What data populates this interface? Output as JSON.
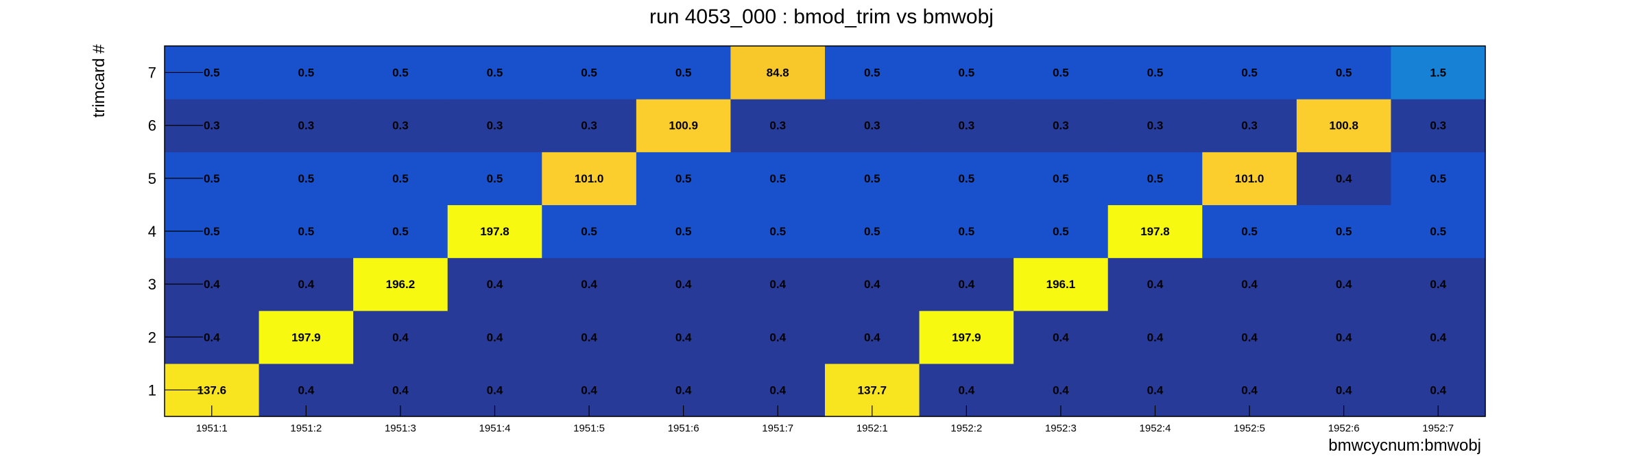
{
  "chart_data": {
    "type": "heatmap",
    "title": "run 4053_000 : bmod_trim vs bmwobj",
    "xlabel": "bmwcycnum:bmwobj",
    "ylabel": "trimcard #",
    "x_categories": [
      "1951:1",
      "1951:2",
      "1951:3",
      "1951:4",
      "1951:5",
      "1951:6",
      "1951:7",
      "1952:1",
      "1952:2",
      "1952:3",
      "1952:4",
      "1952:5",
      "1952:6",
      "1952:7"
    ],
    "y_categories": [
      "1",
      "2",
      "3",
      "4",
      "5",
      "6",
      "7"
    ],
    "values": [
      [
        137.6,
        0.4,
        0.4,
        0.4,
        0.4,
        0.4,
        0.4,
        137.7,
        0.4,
        0.4,
        0.4,
        0.4,
        0.4,
        0.4
      ],
      [
        0.4,
        197.9,
        0.4,
        0.4,
        0.4,
        0.4,
        0.4,
        0.4,
        197.9,
        0.4,
        0.4,
        0.4,
        0.4,
        0.4
      ],
      [
        0.4,
        0.4,
        196.2,
        0.4,
        0.4,
        0.4,
        0.4,
        0.4,
        0.4,
        196.1,
        0.4,
        0.4,
        0.4,
        0.4
      ],
      [
        0.5,
        0.5,
        0.5,
        197.8,
        0.5,
        0.5,
        0.5,
        0.5,
        0.5,
        0.5,
        197.8,
        0.5,
        0.5,
        0.5
      ],
      [
        0.5,
        0.5,
        0.5,
        0.5,
        101.0,
        0.5,
        0.5,
        0.5,
        0.5,
        0.5,
        0.5,
        101.0,
        0.4,
        0.5
      ],
      [
        0.3,
        0.3,
        0.3,
        0.3,
        0.3,
        100.9,
        0.3,
        0.3,
        0.3,
        0.3,
        0.3,
        0.3,
        100.8,
        0.3
      ],
      [
        0.5,
        0.5,
        0.5,
        0.5,
        0.5,
        0.5,
        84.8,
        0.5,
        0.5,
        0.5,
        0.5,
        0.5,
        0.5,
        1.5
      ]
    ],
    "value_labels_shown": true,
    "colors": {
      "low_0.3": "#263c9a",
      "low_0.4": "#273a98",
      "low_0.5": "#1951cd",
      "mid_1.5": "#1781d6",
      "high_84.8": "#f8c82a",
      "high_100.9": "#fbce2e",
      "high_137.6": "#f8e51f",
      "high_197.9": "#f7f911"
    }
  }
}
